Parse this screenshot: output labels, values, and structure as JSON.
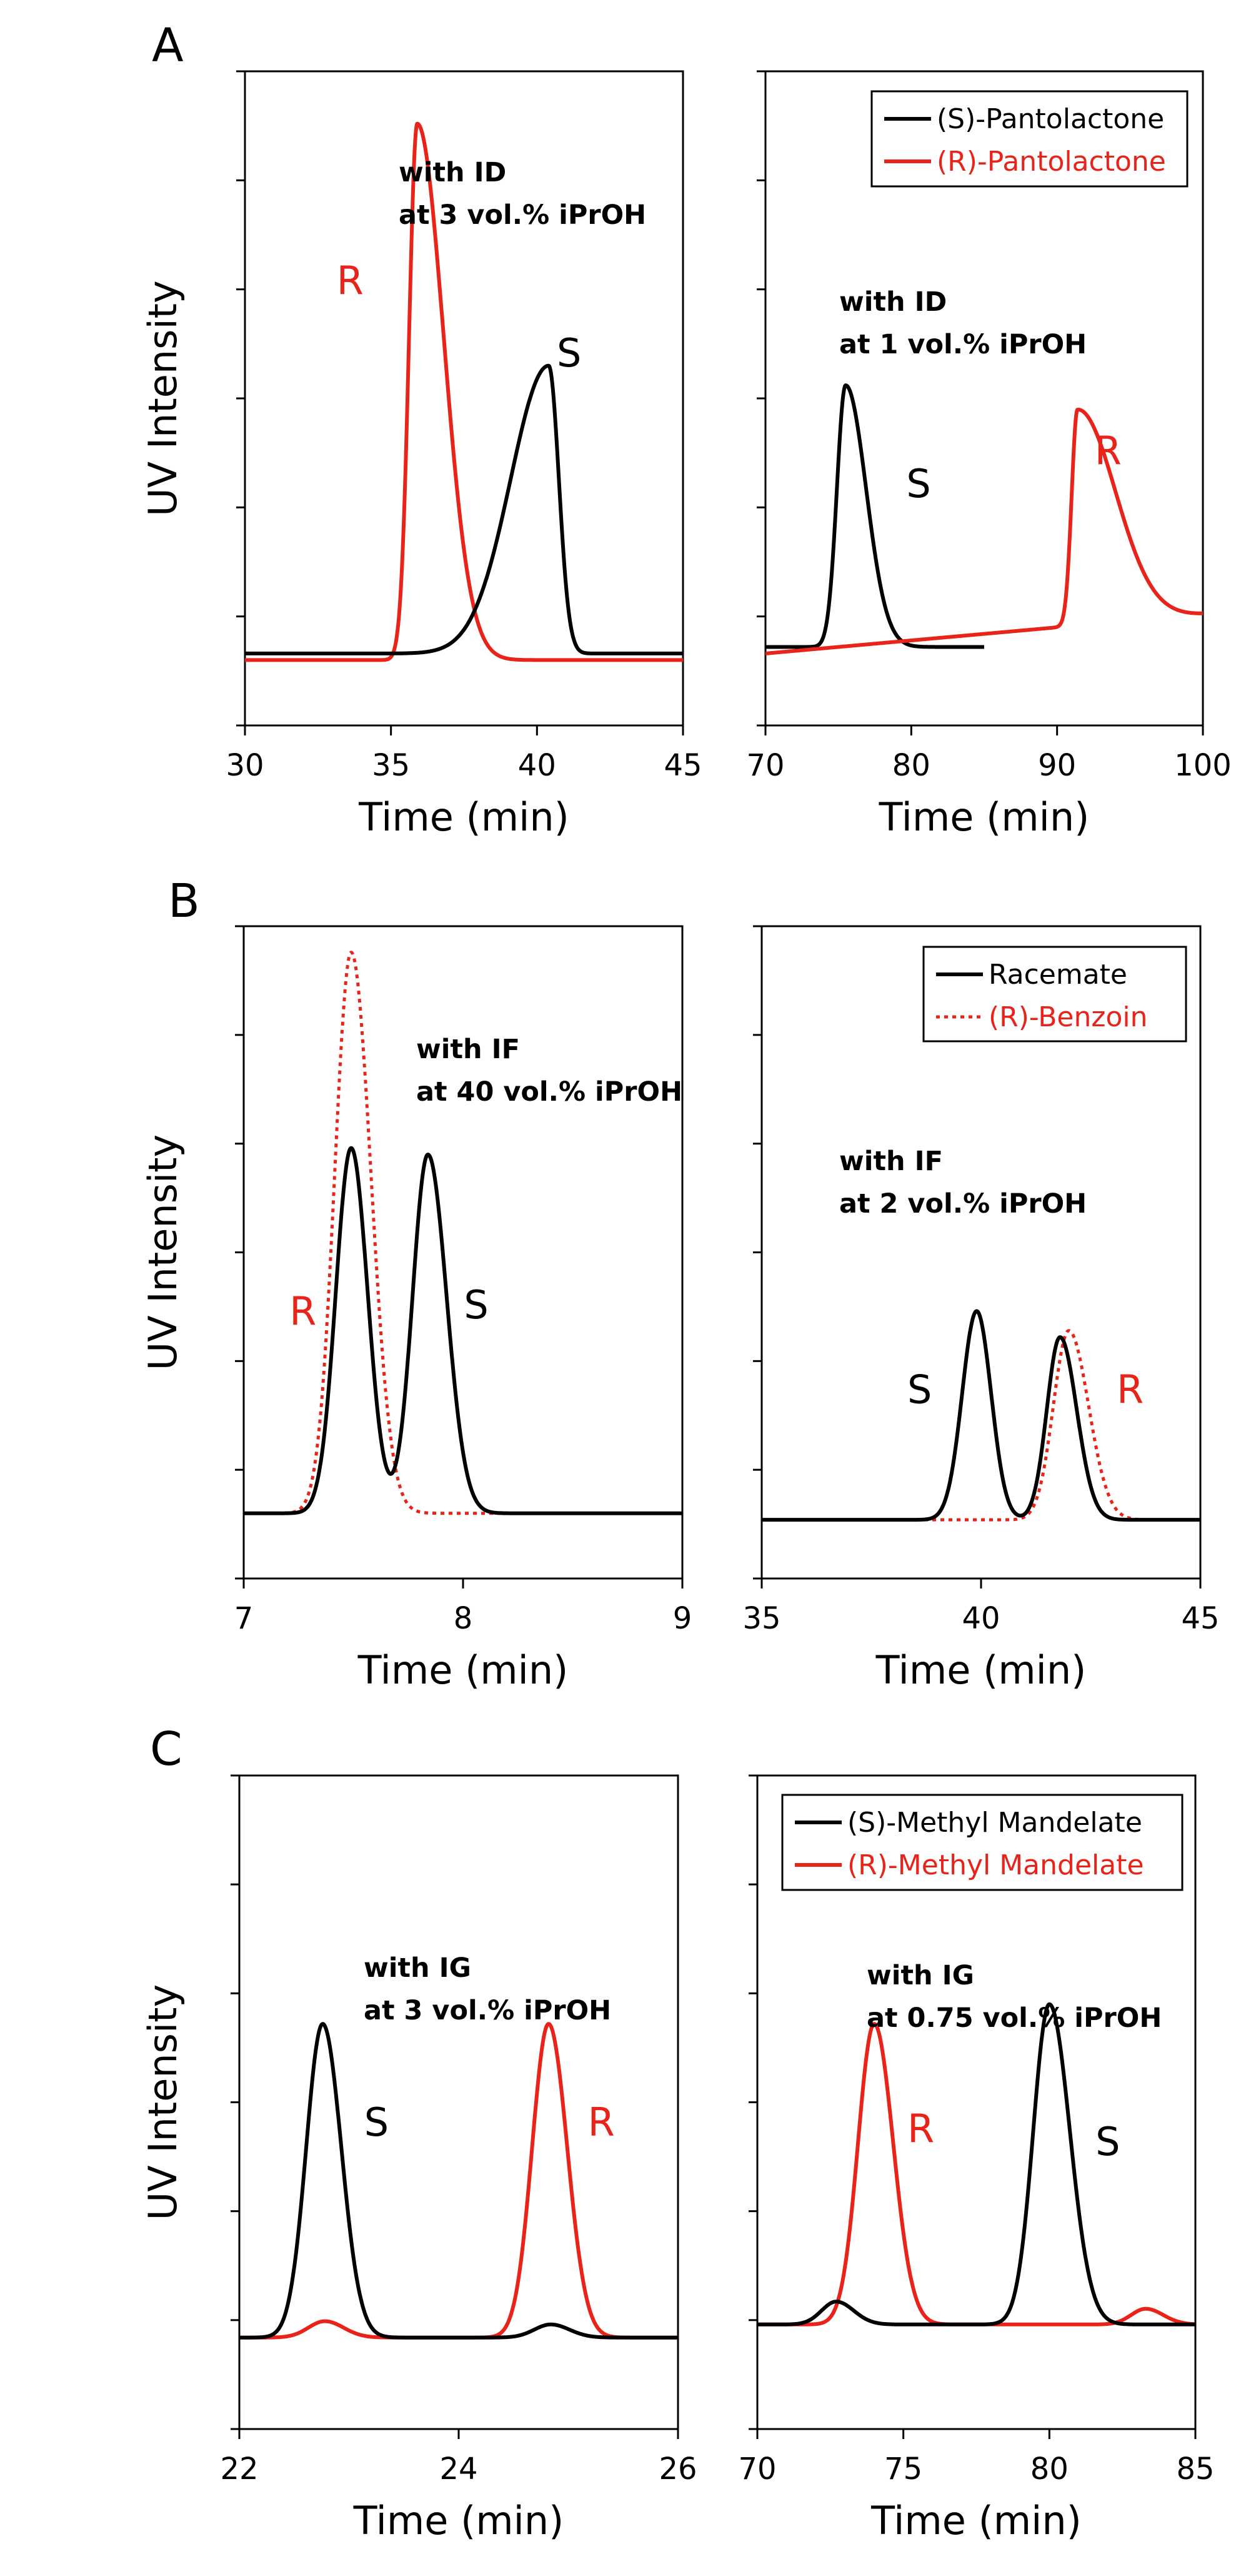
{
  "colors": {
    "black": "#000000",
    "red": "#e8231a"
  },
  "chart_data": [
    {
      "id": "A-left",
      "group": "A",
      "type": "line",
      "xlim": [
        30,
        45
      ],
      "xticks": [
        30,
        35,
        40,
        45
      ],
      "ylabel": "UV Intensity",
      "xlabel": "Time (min)",
      "annotation": [
        "with ID",
        "at 3 vol.% iPrOH"
      ],
      "peak_labels": [
        {
          "text": "R",
          "color": "red",
          "x": 33.6,
          "y": 0.68
        },
        {
          "text": "S",
          "color": "black",
          "x": 41.1,
          "y": 0.57
        }
      ],
      "series": [
        {
          "color": "red",
          "baseline": 0.1,
          "peaks": [
            {
              "center": 35.9,
              "height": 0.82,
              "rise": 0.28,
              "fall": 0.9
            }
          ]
        },
        {
          "color": "black",
          "baseline": 0.11,
          "peaks": [
            {
              "center": 40.4,
              "height": 0.44,
              "rise": 1.3,
              "fall": 0.35
            }
          ]
        }
      ]
    },
    {
      "id": "A-right",
      "group": "A",
      "type": "line",
      "xlim": [
        70,
        100
      ],
      "xticks": [
        70,
        80,
        90,
        100
      ],
      "xlabel": "Time (min)",
      "legend": [
        {
          "label": "(S)-Pantolactone",
          "color": "black",
          "dash": false
        },
        {
          "label": "(R)-Pantolactone",
          "color": "red",
          "dash": false
        }
      ],
      "annotation": [
        "with ID",
        "at 1 vol.% iPrOH"
      ],
      "peak_labels": [
        {
          "text": "S",
          "color": "black",
          "x": 80.5,
          "y": 0.37
        },
        {
          "text": "R",
          "color": "red",
          "x": 93.5,
          "y": 0.42
        }
      ],
      "series": [
        {
          "color": "black",
          "baseline": 0.12,
          "xmax": 85,
          "peaks": [
            {
              "center": 75.5,
              "height": 0.4,
              "rise": 0.6,
              "fall": 1.4
            }
          ]
        },
        {
          "color": "red",
          "baseline": 0.11,
          "slope": 0.002,
          "peaks": [
            {
              "center": 91.4,
              "height": 0.33,
              "rise": 0.4,
              "fall": 2.6
            }
          ]
        }
      ]
    },
    {
      "id": "B-left",
      "group": "B",
      "type": "line",
      "xlim": [
        7,
        9
      ],
      "xticks": [
        7,
        8,
        9
      ],
      "ylabel": "UV Intensity",
      "xlabel": "Time (min)",
      "annotation": [
        "with IF",
        "at 40 vol.% iPrOH"
      ],
      "peak_labels": [
        {
          "text": "R",
          "color": "red",
          "x": 7.27,
          "y": 0.41
        },
        {
          "text": "S",
          "color": "black",
          "x": 8.06,
          "y": 0.42
        }
      ],
      "series": [
        {
          "color": "red",
          "dash": true,
          "baseline": 0.1,
          "peaks": [
            {
              "center": 7.49,
              "height": 0.86,
              "rise": 0.075,
              "fall": 0.09
            }
          ]
        },
        {
          "color": "black",
          "baseline": 0.1,
          "peaks": [
            {
              "center": 7.49,
              "height": 0.56,
              "rise": 0.07,
              "fall": 0.075
            },
            {
              "center": 7.84,
              "height": 0.55,
              "rise": 0.07,
              "fall": 0.085
            }
          ]
        }
      ]
    },
    {
      "id": "B-right",
      "group": "B",
      "type": "line",
      "xlim": [
        35,
        45
      ],
      "xticks": [
        35,
        40,
        45
      ],
      "xlabel": "Time (min)",
      "legend": [
        {
          "label": "Racemate",
          "color": "black",
          "dash": false
        },
        {
          "label": "(R)-Benzoin",
          "color": "red",
          "dash": true
        }
      ],
      "annotation": [
        "with IF",
        "at 2 vol.% iPrOH"
      ],
      "peak_labels": [
        {
          "text": "S",
          "color": "black",
          "x": 38.6,
          "y": 0.29
        },
        {
          "text": "R",
          "color": "red",
          "x": 43.4,
          "y": 0.29
        }
      ],
      "series": [
        {
          "color": "red",
          "dash": true,
          "baseline": 0.09,
          "peaks": [
            {
              "center": 42.0,
              "height": 0.29,
              "rise": 0.35,
              "fall": 0.45
            }
          ]
        },
        {
          "color": "black",
          "baseline": 0.09,
          "peaks": [
            {
              "center": 39.9,
              "height": 0.32,
              "rise": 0.33,
              "fall": 0.33
            },
            {
              "center": 41.8,
              "height": 0.28,
              "rise": 0.3,
              "fall": 0.38
            }
          ]
        }
      ]
    },
    {
      "id": "C-left",
      "group": "C",
      "type": "line",
      "xlim": [
        22,
        26
      ],
      "xticks": [
        22,
        24,
        26
      ],
      "ylabel": "UV Intensity",
      "xlabel": "Time (min)",
      "annotation": [
        "with IG",
        "at 3 vol.% iPrOH"
      ],
      "peak_labels": [
        {
          "text": "S",
          "color": "black",
          "x": 23.25,
          "y": 0.47
        },
        {
          "text": "R",
          "color": "red",
          "x": 25.3,
          "y": 0.47
        }
      ],
      "series": [
        {
          "color": "red",
          "baseline": 0.14,
          "peaks": [
            {
              "center": 22.78,
              "height": 0.025,
              "rise": 0.15,
              "fall": 0.17
            },
            {
              "center": 24.82,
              "height": 0.48,
              "rise": 0.15,
              "fall": 0.17
            }
          ]
        },
        {
          "color": "black",
          "baseline": 0.14,
          "peaks": [
            {
              "center": 22.76,
              "height": 0.48,
              "rise": 0.15,
              "fall": 0.17
            },
            {
              "center": 24.84,
              "height": 0.02,
              "rise": 0.15,
              "fall": 0.17
            }
          ]
        }
      ]
    },
    {
      "id": "C-right",
      "group": "C",
      "type": "line",
      "xlim": [
        70,
        85
      ],
      "xticks": [
        70,
        75,
        80,
        85
      ],
      "xlabel": "Time (min)",
      "legend": [
        {
          "label": "(S)-Methyl Mandelate",
          "color": "black",
          "dash": false
        },
        {
          "label": "(R)-Methyl Mandelate",
          "color": "red",
          "dash": false
        }
      ],
      "annotation": [
        "with IG",
        "at 0.75 vol.% iPrOH"
      ],
      "peak_labels": [
        {
          "text": "R",
          "color": "red",
          "x": 75.6,
          "y": 0.46
        },
        {
          "text": "S",
          "color": "black",
          "x": 82.0,
          "y": 0.44
        }
      ],
      "series": [
        {
          "color": "red",
          "baseline": 0.16,
          "peaks": [
            {
              "center": 74.0,
              "height": 0.46,
              "rise": 0.55,
              "fall": 0.65
            },
            {
              "center": 83.3,
              "height": 0.024,
              "rise": 0.5,
              "fall": 0.6
            }
          ]
        },
        {
          "color": "black",
          "baseline": 0.16,
          "peaks": [
            {
              "center": 72.7,
              "height": 0.035,
              "rise": 0.5,
              "fall": 0.6
            },
            {
              "center": 80.0,
              "height": 0.49,
              "rise": 0.55,
              "fall": 0.7
            }
          ]
        }
      ]
    }
  ],
  "panel_letters": [
    "A",
    "B",
    "C"
  ]
}
